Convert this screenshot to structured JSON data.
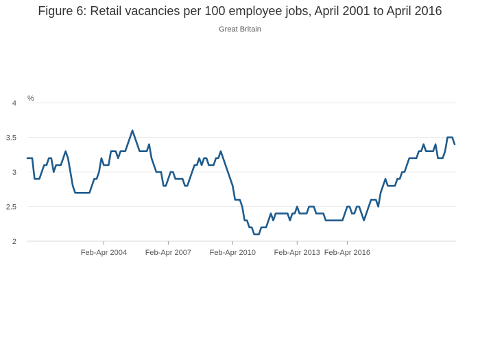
{
  "chart_data": {
    "type": "line",
    "title": "Figure 6: Retail vacancies per 100 employee jobs, April 2001 to April 2016",
    "subtitle": "Great Britain",
    "ylabel": "%",
    "xlabel": "",
    "ylim": [
      2,
      4
    ],
    "yticks": [
      "2",
      "2.5",
      "3",
      "3.5",
      "4"
    ],
    "xticks": [
      {
        "label": "Feb-Apr 2004",
        "index": 32
      },
      {
        "label": "Feb-Apr 2007",
        "index": 59
      },
      {
        "label": "Feb-Apr 2010",
        "index": 86
      },
      {
        "label": "Feb-Apr 2013",
        "index": 113
      },
      {
        "label": "Feb-Apr 2016",
        "index": 134
      }
    ],
    "grid": true,
    "series": [
      {
        "color": "#1f5b8c",
        "values": [
          3.2,
          3.2,
          3.2,
          2.9,
          2.9,
          2.9,
          3.0,
          3.1,
          3.1,
          3.2,
          3.2,
          3.0,
          3.1,
          3.1,
          3.1,
          3.2,
          3.3,
          3.2,
          3.0,
          2.8,
          2.7,
          2.7,
          2.7,
          2.7,
          2.7,
          2.7,
          2.7,
          2.8,
          2.9,
          2.9,
          3.0,
          3.2,
          3.1,
          3.1,
          3.1,
          3.3,
          3.3,
          3.3,
          3.2,
          3.3,
          3.3,
          3.3,
          3.4,
          3.5,
          3.6,
          3.5,
          3.4,
          3.3,
          3.3,
          3.3,
          3.3,
          3.4,
          3.2,
          3.1,
          3.0,
          3.0,
          3.0,
          2.8,
          2.8,
          2.9,
          3.0,
          3.0,
          2.9,
          2.9,
          2.9,
          2.9,
          2.8,
          2.8,
          2.9,
          3.0,
          3.1,
          3.1,
          3.2,
          3.1,
          3.2,
          3.2,
          3.1,
          3.1,
          3.1,
          3.2,
          3.2,
          3.3,
          3.2,
          3.1,
          3.0,
          2.9,
          2.8,
          2.6,
          2.6,
          2.6,
          2.5,
          2.3,
          2.3,
          2.2,
          2.2,
          2.1,
          2.1,
          2.1,
          2.2,
          2.2,
          2.2,
          2.3,
          2.4,
          2.3,
          2.4,
          2.4,
          2.4,
          2.4,
          2.4,
          2.4,
          2.3,
          2.4,
          2.4,
          2.5,
          2.4,
          2.4,
          2.4,
          2.4,
          2.5,
          2.5,
          2.5,
          2.4,
          2.4,
          2.4,
          2.4,
          2.3,
          2.3,
          2.3,
          2.3,
          2.3,
          2.3,
          2.3,
          2.3,
          2.4,
          2.5,
          2.5,
          2.4,
          2.4,
          2.5,
          2.5,
          2.4,
          2.3,
          2.4,
          2.5,
          2.6,
          2.6,
          2.6,
          2.5,
          2.7,
          2.8,
          2.9,
          2.8,
          2.8,
          2.8,
          2.8,
          2.9,
          2.9,
          3.0,
          3.0,
          3.1,
          3.2,
          3.2,
          3.2,
          3.2,
          3.3,
          3.3,
          3.4,
          3.3,
          3.3,
          3.3,
          3.3,
          3.4,
          3.2,
          3.2,
          3.2,
          3.3,
          3.5,
          3.5,
          3.5,
          3.4
        ]
      }
    ]
  }
}
